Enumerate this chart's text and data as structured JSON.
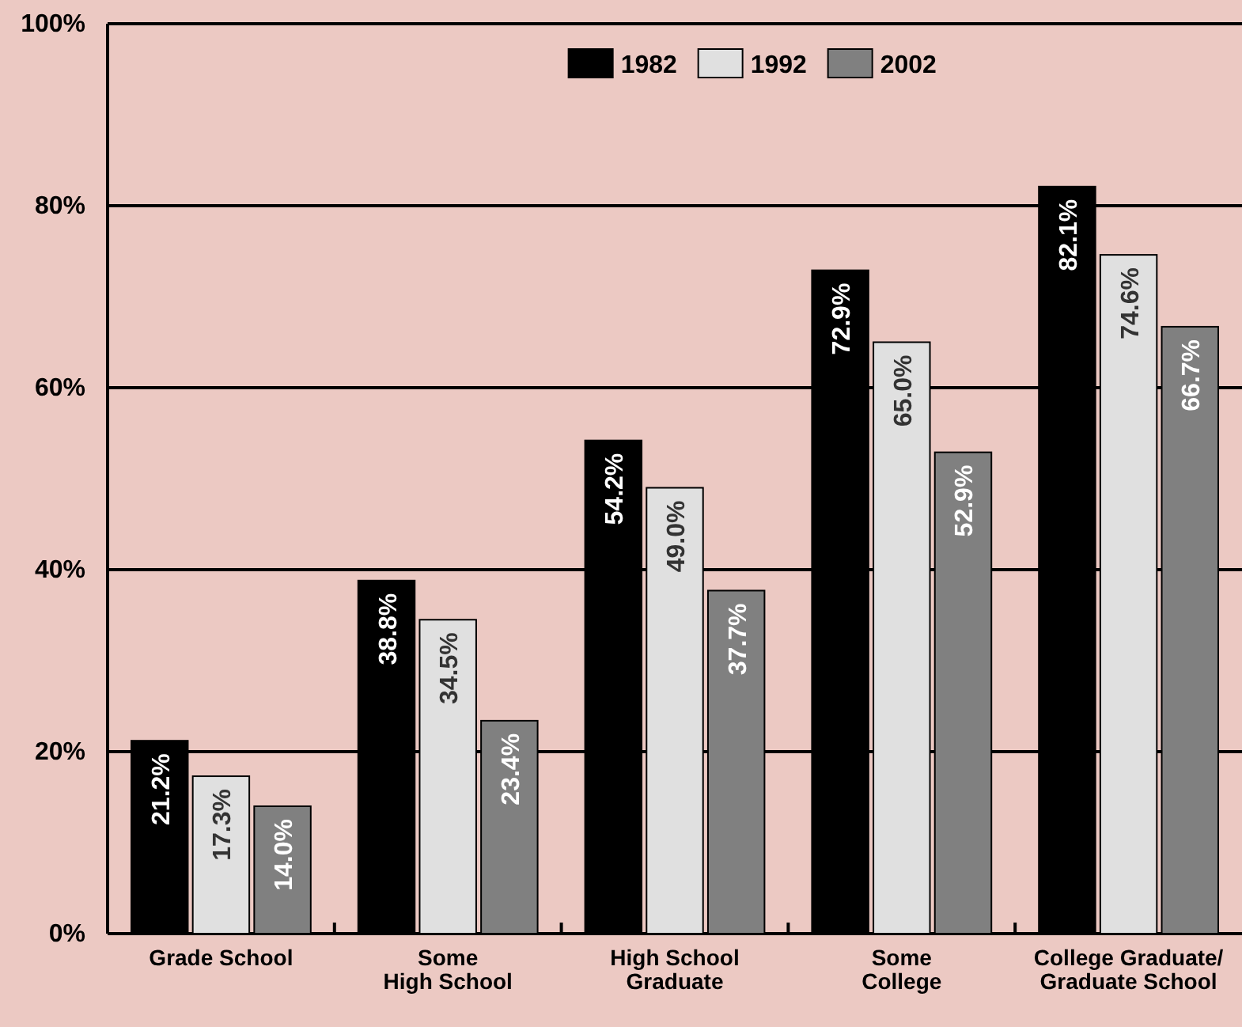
{
  "chart_data": {
    "type": "bar",
    "categories": [
      "Grade School",
      "Some\nHigh School",
      "High School\nGraduate",
      "Some\nCollege",
      "College Graduate/\nGraduate School"
    ],
    "series": [
      {
        "name": "1982",
        "color": "#000000",
        "values": [
          21.2,
          38.8,
          54.2,
          72.9,
          82.1
        ],
        "value_labels": [
          "21.2%",
          "38.8%",
          "54.2%",
          "72.9%",
          "82.1%"
        ]
      },
      {
        "name": "1992",
        "color": "#e0e0e0",
        "values": [
          17.3,
          34.5,
          49.0,
          65.0,
          74.6
        ],
        "value_labels": [
          "17.3%",
          "34.5%",
          "49.0%",
          "65.0%",
          "74.6%"
        ]
      },
      {
        "name": "2002",
        "color": "#808080",
        "values": [
          14.0,
          23.4,
          37.7,
          52.9,
          66.7
        ],
        "value_labels": [
          "14.0%",
          "23.4%",
          "37.7%",
          "52.9%",
          "66.7%"
        ]
      }
    ],
    "ylim": [
      0,
      100
    ],
    "yticks": [
      {
        "value": 0,
        "label": "0%"
      },
      {
        "value": 20,
        "label": "20%"
      },
      {
        "value": 40,
        "label": "40%"
      },
      {
        "value": 60,
        "label": "60%"
      },
      {
        "value": 80,
        "label": "80%"
      },
      {
        "value": 100,
        "label": "100%"
      }
    ],
    "grid": "y",
    "legend": "top"
  }
}
